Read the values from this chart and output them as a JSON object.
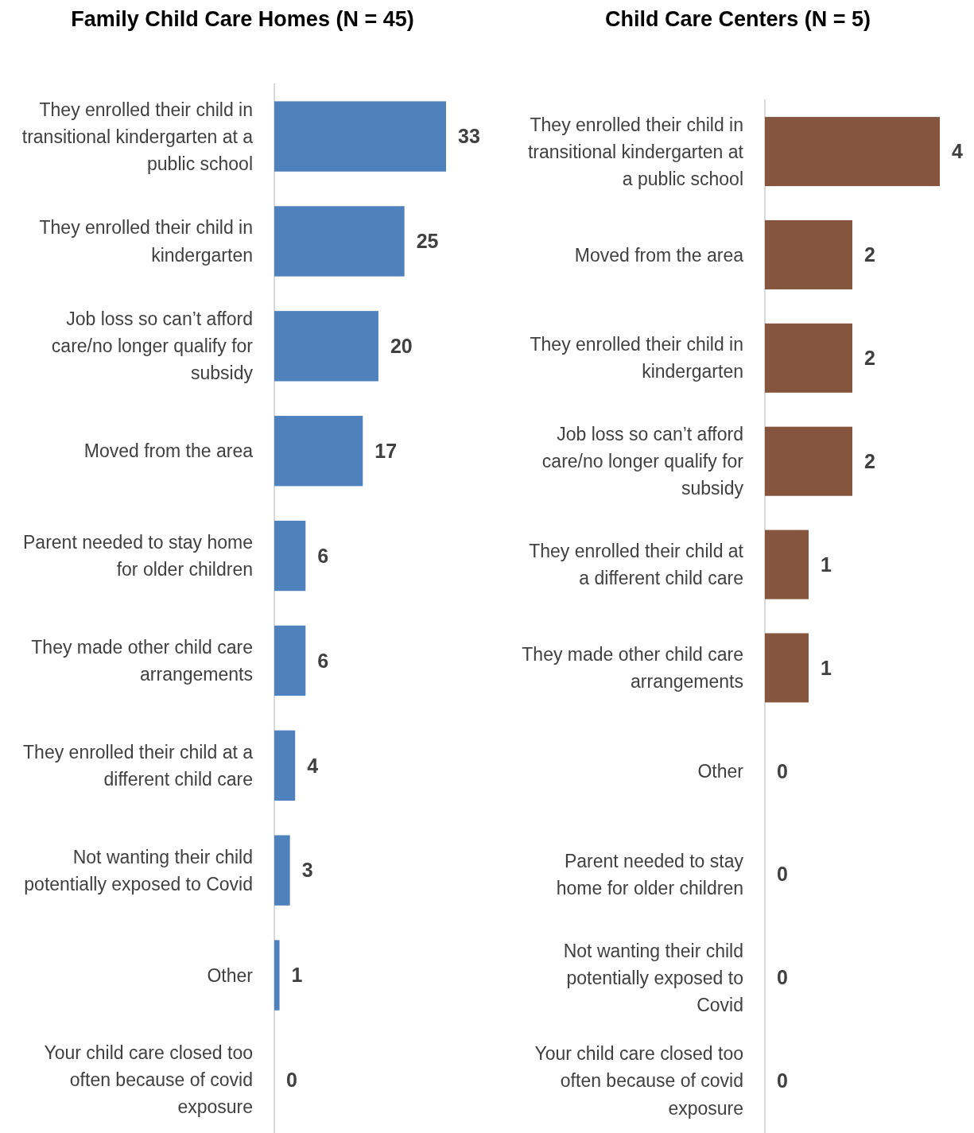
{
  "chart_data": [
    {
      "type": "bar",
      "orientation": "horizontal",
      "title": "Family Child Care Homes (N = 45)",
      "data_labels": true,
      "categories": [
        "They enrolled their child in transitional kindergarten at a public school",
        "They enrolled their child in kindergarten",
        "Job loss so can’t afford care/no longer qualify for subsidy",
        "Moved from the area",
        "Parent needed to stay home for older children",
        "They made other child care arrangements",
        "They enrolled their child at a different child care",
        "Not wanting their child potentially exposed to Covid",
        "Other",
        "Your child care closed too often because of covid exposure"
      ],
      "values": [
        33,
        25,
        20,
        17,
        6,
        6,
        4,
        3,
        1,
        0
      ],
      "color": "#4f81bd"
    },
    {
      "type": "bar",
      "orientation": "horizontal",
      "title": "Child Care Centers (N = 5)",
      "data_labels": true,
      "categories": [
        "They enrolled their child in transitional kindergarten at a public school",
        "Moved from the area",
        "They enrolled their child in kindergarten",
        "Job loss so can’t afford care/no longer qualify for subsidy",
        "They enrolled their child at a different child care",
        "They made other child care arrangements",
        "Other",
        "Parent needed to stay home for older children",
        "Not wanting their child potentially exposed to Covid",
        "Your child care closed too often because of covid exposure"
      ],
      "values": [
        4,
        2,
        2,
        2,
        1,
        1,
        0,
        0,
        0,
        0
      ],
      "color": "#86553d"
    }
  ]
}
